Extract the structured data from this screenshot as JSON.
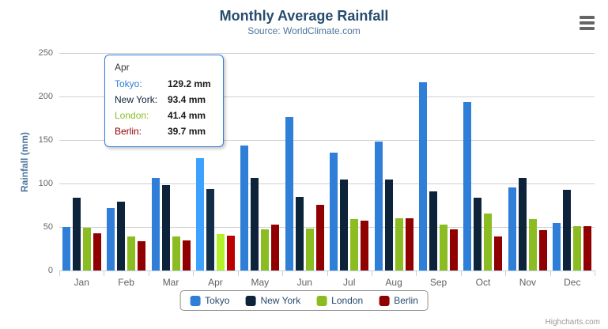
{
  "chart": {
    "title": "Monthly Average Rainfall",
    "subtitle": "Source: WorldClimate.com",
    "credit": "Highcharts.com"
  },
  "chart_data": {
    "type": "bar",
    "title": "Monthly Average Rainfall",
    "subtitle": "Source: WorldClimate.com",
    "categories": [
      "Jan",
      "Feb",
      "Mar",
      "Apr",
      "May",
      "Jun",
      "Jul",
      "Aug",
      "Sep",
      "Oct",
      "Nov",
      "Dec"
    ],
    "series": [
      {
        "name": "Tokyo",
        "color": "#2f7ed8",
        "values": [
          49.9,
          71.5,
          106.4,
          129.2,
          144.0,
          176.0,
          135.6,
          148.5,
          216.4,
          194.1,
          95.6,
          54.4
        ]
      },
      {
        "name": "New York",
        "color": "#0d233a",
        "values": [
          83.6,
          78.8,
          98.5,
          93.4,
          106.0,
          84.5,
          105.0,
          104.3,
          91.2,
          83.5,
          106.6,
          92.3
        ]
      },
      {
        "name": "London",
        "color": "#8bbc21",
        "values": [
          48.9,
          38.8,
          39.3,
          41.4,
          47.0,
          48.3,
          59.0,
          59.6,
          52.4,
          65.2,
          59.3,
          51.2
        ]
      },
      {
        "name": "Berlin",
        "color": "#910000",
        "values": [
          42.4,
          33.2,
          34.5,
          39.7,
          52.6,
          75.5,
          57.4,
          60.4,
          47.6,
          39.1,
          46.8,
          51.1
        ]
      }
    ],
    "xlabel": "",
    "ylabel": "Rainfall (mm)",
    "ylim": [
      0,
      250
    ],
    "ytick_interval": 50,
    "grid": true,
    "legend_position": "bottom",
    "hover_category": "Apr"
  },
  "tooltip": {
    "header": "Apr",
    "rows": [
      {
        "label": "Tokyo:",
        "value": "129.2 mm",
        "color": "#2f7ed8"
      },
      {
        "label": "New York:",
        "value": "93.4 mm",
        "color": "#0d233a"
      },
      {
        "label": "London:",
        "value": "41.4 mm",
        "color": "#8bbc21"
      },
      {
        "label": "Berlin:",
        "value": "39.7 mm",
        "color": "#910000"
      }
    ]
  }
}
